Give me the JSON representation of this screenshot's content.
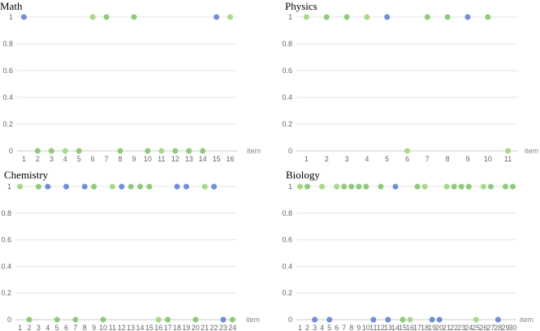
{
  "colors": {
    "correct": "#8fca7b",
    "correct_light": "#a8d98a",
    "wrong": "#6f8fd6"
  },
  "chart_data": [
    {
      "type": "scatter",
      "title": "Math",
      "xlabel": "item",
      "ylabel": "",
      "ylim": [
        0,
        1
      ],
      "yticks": [
        "0",
        "0.2",
        "0.4",
        "0.6",
        "0.8",
        "1"
      ],
      "x": [
        1,
        2,
        3,
        4,
        5,
        6,
        7,
        8,
        9,
        10,
        11,
        12,
        13,
        14,
        15,
        16
      ],
      "y": [
        1,
        0,
        0,
        0,
        0,
        1,
        1,
        0,
        1,
        0,
        0,
        0,
        0,
        0,
        1,
        1
      ],
      "wrong_items": [
        1,
        15
      ]
    },
    {
      "type": "scatter",
      "title": "Physics",
      "xlabel": "item",
      "ylabel": "",
      "ylim": [
        0,
        1
      ],
      "yticks": [
        "0",
        "0.2",
        "0.4",
        "0.6",
        "0.8",
        "1"
      ],
      "x": [
        1,
        2,
        3,
        4,
        5,
        6,
        7,
        8,
        9,
        10,
        11
      ],
      "y": [
        1,
        1,
        1,
        1,
        1,
        0,
        1,
        1,
        1,
        1,
        0
      ],
      "wrong_items": [
        5,
        9
      ]
    },
    {
      "type": "scatter",
      "title": "Chemistry",
      "xlabel": "item",
      "ylabel": "",
      "ylim": [
        0,
        1
      ],
      "yticks": [
        "0",
        "0.2",
        "0.4",
        "0.6",
        "0.8",
        "1"
      ],
      "x": [
        1,
        2,
        3,
        4,
        5,
        6,
        7,
        8,
        9,
        10,
        11,
        12,
        13,
        14,
        15,
        16,
        17,
        18,
        19,
        20,
        21,
        22,
        23,
        24
      ],
      "y": [
        1,
        0,
        1,
        1,
        0,
        1,
        0,
        1,
        1,
        0,
        1,
        1,
        1,
        1,
        1,
        0,
        0,
        1,
        1,
        0,
        1,
        1,
        0,
        0
      ],
      "wrong_items": [
        4,
        6,
        8,
        12,
        18,
        19,
        22,
        23
      ]
    },
    {
      "type": "scatter",
      "title": "Biology",
      "xlabel": "item",
      "ylabel": "",
      "ylim": [
        0,
        1
      ],
      "yticks": [
        "0",
        "0.2",
        "0.4",
        "0.6",
        "0.8",
        "1"
      ],
      "x": [
        1,
        2,
        3,
        4,
        5,
        6,
        7,
        8,
        9,
        10,
        11,
        12,
        13,
        14,
        15,
        16,
        17,
        18,
        19,
        20,
        21,
        22,
        23,
        24,
        25,
        26,
        27,
        28,
        29,
        30
      ],
      "y": [
        1,
        1,
        0,
        1,
        0,
        1,
        1,
        1,
        1,
        1,
        0,
        1,
        0,
        1,
        0,
        0,
        1,
        1,
        0,
        0,
        1,
        1,
        1,
        1,
        0,
        1,
        1,
        0,
        1,
        1
      ],
      "wrong_items": [
        3,
        5,
        11,
        13,
        14,
        19,
        20,
        28
      ]
    }
  ]
}
